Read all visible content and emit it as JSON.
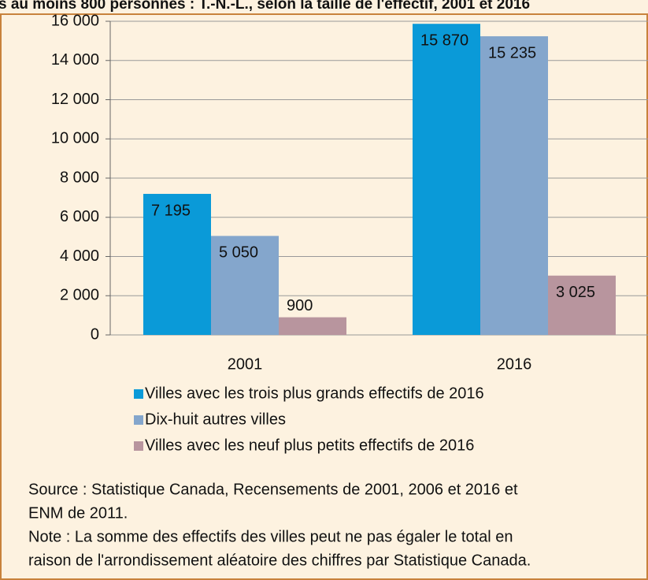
{
  "chart_data": {
    "type": "bar",
    "title": "s au moins 800 personnes : T.-N.-L., selon la taille de l'effectif, 2001 et 2016",
    "categories": [
      "2001",
      "2016"
    ],
    "series": [
      {
        "name": "Villes avec les trois plus grands effectifs de 2016",
        "color": "#0a9ad8",
        "values": [
          7195,
          15870
        ],
        "value_labels": [
          "7 195",
          "15 870"
        ]
      },
      {
        "name": "Dix-huit autres villes",
        "color": "#84a6cc",
        "values": [
          5050,
          15235
        ],
        "value_labels": [
          "5 050",
          "15 235"
        ]
      },
      {
        "name": "Villes avec les neuf plus petits effectifs de 2016",
        "color": "#b8959e",
        "values": [
          900,
          3025
        ],
        "value_labels": [
          "900",
          "3 025"
        ]
      }
    ],
    "ylim": [
      0,
      16000
    ],
    "yticks": [
      0,
      {
        "value": 2000,
        "label": "2 000"
      },
      {
        "value": 4000,
        "label": "4 000"
      },
      {
        "value": 6000,
        "label": "6 000"
      },
      {
        "value": 8000,
        "label": "8 000"
      },
      {
        "value": 10000,
        "label": "10 000"
      },
      {
        "value": 12000,
        "label": "12 000"
      },
      {
        "value": 14000,
        "label": "14 000"
      },
      {
        "value": 16000,
        "label": "16 000"
      }
    ],
    "grid": true,
    "notes": [
      "Source : Statistique Canada, Recensements de 2001, 2006 et 2016 et",
      "ENM de 2011.",
      "Note : La somme des effectifs des villes peut ne pas égaler le total en",
      "raison de l'arrondissement aléatoire des chiffres par Statistique Canada."
    ]
  }
}
